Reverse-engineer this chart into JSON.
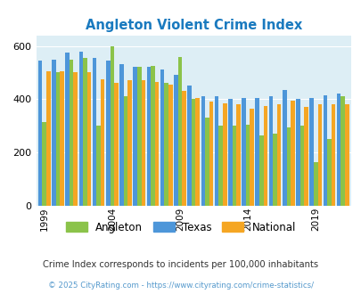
{
  "title": "Angleton Violent Crime Index",
  "subtitle": "Crime Index corresponds to incidents per 100,000 inhabitants",
  "footer": "© 2025 CityRating.com - https://www.cityrating.com/crime-statistics/",
  "years": [
    1999,
    2000,
    2001,
    2002,
    2003,
    2004,
    2005,
    2006,
    2007,
    2008,
    2009,
    2010,
    2011,
    2012,
    2013,
    2014,
    2015,
    2016,
    2017,
    2018,
    2019,
    2020,
    2021
  ],
  "angleton": [
    315,
    500,
    550,
    555,
    300,
    600,
    410,
    520,
    525,
    460,
    560,
    400,
    330,
    300,
    300,
    305,
    265,
    270,
    295,
    300,
    165,
    250,
    410
  ],
  "texas": [
    545,
    550,
    575,
    580,
    555,
    545,
    530,
    520,
    520,
    510,
    490,
    450,
    410,
    410,
    400,
    405,
    405,
    410,
    435,
    400,
    405,
    415,
    420
  ],
  "national": [
    505,
    505,
    500,
    500,
    475,
    460,
    470,
    470,
    465,
    455,
    430,
    405,
    390,
    385,
    380,
    365,
    375,
    380,
    395,
    370,
    380,
    380,
    380
  ],
  "xticks": [
    1999,
    2004,
    2009,
    2014,
    2019
  ],
  "ylim": [
    0,
    640
  ],
  "yticks": [
    0,
    200,
    400,
    600
  ],
  "angleton_color": "#8bc34a",
  "texas_color": "#4d96d9",
  "national_color": "#f5a623",
  "bg_color": "#ddeef5",
  "title_color": "#1a7abf",
  "subtitle_color": "#333333",
  "footer_color": "#5599cc"
}
